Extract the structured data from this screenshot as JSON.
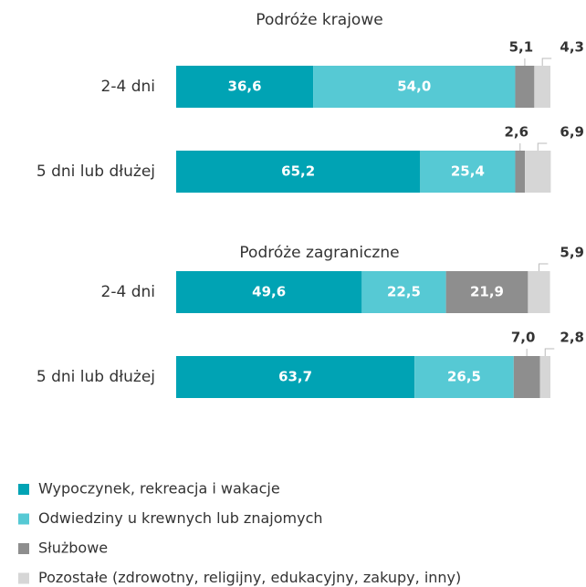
{
  "chart_data": {
    "type": "bar",
    "orientation": "horizontal",
    "stacked": true,
    "xlim": [
      0,
      100
    ],
    "series": [
      {
        "name": "Wypoczynek, rekreacja i wakacje",
        "color": "#00a3b4"
      },
      {
        "name": "Odwiedziny u krewnych lub znajomych",
        "color": "#56c9d4"
      },
      {
        "name": "Służbowe",
        "color": "#8e8e8e"
      },
      {
        "name": "Pozostałe (zdrowotny, religijny, edukacyjny, zakupy, inny)",
        "color": "#d6d6d6"
      }
    ],
    "groups": [
      {
        "title": "Podróże krajowe",
        "categories": [
          "2-4 dni",
          "5 dni lub dłużej"
        ],
        "values": [
          [
            36.6,
            54.0,
            5.1,
            4.3
          ],
          [
            65.2,
            25.4,
            2.6,
            6.9
          ]
        ],
        "value_labels": [
          [
            "36,6",
            "54,0",
            "5,1",
            "4,3"
          ],
          [
            "65,2",
            "25,4",
            "2,6",
            "6,9"
          ]
        ]
      },
      {
        "title": "Podróże zagraniczne",
        "categories": [
          "2-4 dni",
          "5 dni lub dłużej"
        ],
        "values": [
          [
            49.6,
            22.5,
            21.9,
            5.9
          ],
          [
            63.7,
            26.5,
            7.0,
            2.8
          ]
        ],
        "value_labels": [
          [
            "49,6",
            "22,5",
            "21,9",
            "5,9"
          ],
          [
            "63,7",
            "26,5",
            "7,0",
            "2,8"
          ]
        ]
      }
    ]
  }
}
